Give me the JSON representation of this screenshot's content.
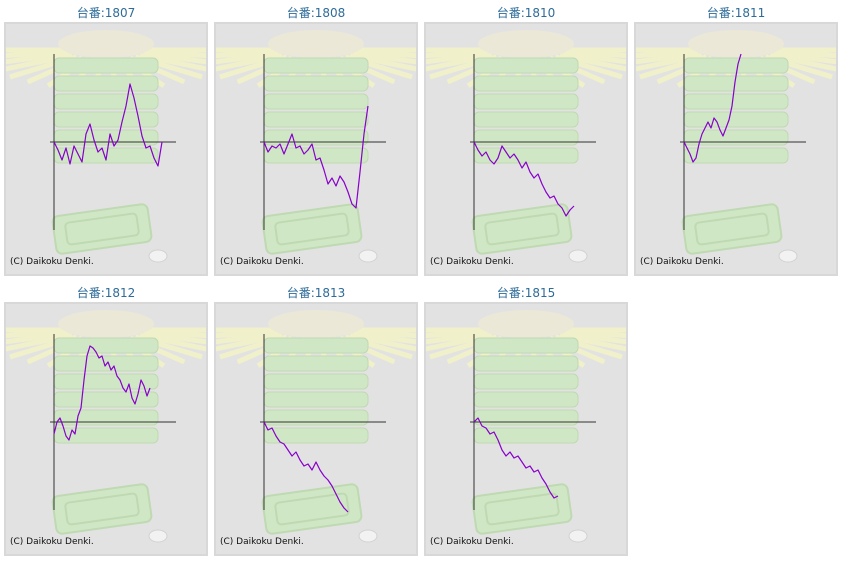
{
  "colors": {
    "title": "#2e6c9a",
    "line": "#8800cc",
    "axis": "#333333",
    "panel_bg": "#e2e2e2",
    "panel_border": "#d8d8d8",
    "watermark_green": "#cfe8c2",
    "watermark_rays": "#f2f2c8"
  },
  "chart_data": [
    {
      "type": "line",
      "title": "台番:1807",
      "copyright": "(C) Daikoku Denki.",
      "points": [
        [
          0,
          0
        ],
        [
          4,
          -8
        ],
        [
          8,
          -18
        ],
        [
          12,
          -6
        ],
        [
          16,
          -22
        ],
        [
          20,
          -4
        ],
        [
          24,
          -12
        ],
        [
          28,
          -20
        ],
        [
          32,
          8
        ],
        [
          36,
          18
        ],
        [
          40,
          2
        ],
        [
          44,
          -10
        ],
        [
          48,
          -6
        ],
        [
          52,
          -18
        ],
        [
          56,
          8
        ],
        [
          60,
          -4
        ],
        [
          64,
          2
        ],
        [
          68,
          20
        ],
        [
          72,
          36
        ],
        [
          76,
          58
        ],
        [
          80,
          44
        ],
        [
          84,
          26
        ],
        [
          88,
          6
        ],
        [
          92,
          -6
        ],
        [
          96,
          -4
        ],
        [
          100,
          -16
        ],
        [
          104,
          -24
        ],
        [
          108,
          0
        ]
      ]
    },
    {
      "type": "line",
      "title": "台番:1808",
      "copyright": "(C) Daikoku Denki.",
      "points": [
        [
          0,
          0
        ],
        [
          4,
          -10
        ],
        [
          8,
          -4
        ],
        [
          12,
          -6
        ],
        [
          16,
          -2
        ],
        [
          20,
          -12
        ],
        [
          24,
          -2
        ],
        [
          28,
          8
        ],
        [
          32,
          -6
        ],
        [
          36,
          -4
        ],
        [
          40,
          -12
        ],
        [
          44,
          -8
        ],
        [
          48,
          -2
        ],
        [
          52,
          -18
        ],
        [
          56,
          -16
        ],
        [
          60,
          -28
        ],
        [
          64,
          -42
        ],
        [
          68,
          -36
        ],
        [
          72,
          -44
        ],
        [
          76,
          -34
        ],
        [
          80,
          -40
        ],
        [
          84,
          -50
        ],
        [
          88,
          -62
        ],
        [
          92,
          -66
        ],
        [
          96,
          -30
        ],
        [
          100,
          8
        ],
        [
          104,
          36
        ]
      ]
    },
    {
      "type": "line",
      "title": "台番:1810",
      "copyright": "(C) Daikoku Denki.",
      "points": [
        [
          0,
          0
        ],
        [
          4,
          -8
        ],
        [
          8,
          -14
        ],
        [
          12,
          -10
        ],
        [
          16,
          -18
        ],
        [
          20,
          -22
        ],
        [
          24,
          -16
        ],
        [
          28,
          -4
        ],
        [
          32,
          -10
        ],
        [
          36,
          -16
        ],
        [
          40,
          -12
        ],
        [
          44,
          -18
        ],
        [
          48,
          -26
        ],
        [
          52,
          -20
        ],
        [
          56,
          -30
        ],
        [
          60,
          -36
        ],
        [
          64,
          -32
        ],
        [
          68,
          -42
        ],
        [
          72,
          -50
        ],
        [
          76,
          -56
        ],
        [
          80,
          -54
        ],
        [
          84,
          -62
        ],
        [
          88,
          -66
        ],
        [
          92,
          -74
        ],
        [
          96,
          -68
        ],
        [
          100,
          -64
        ]
      ]
    },
    {
      "type": "line",
      "title": "台番:1811",
      "copyright": "(C) Daikoku Denki.",
      "points": [
        [
          0,
          0
        ],
        [
          3,
          -6
        ],
        [
          6,
          -12
        ],
        [
          9,
          -20
        ],
        [
          12,
          -16
        ],
        [
          15,
          -2
        ],
        [
          18,
          8
        ],
        [
          21,
          14
        ],
        [
          24,
          20
        ],
        [
          27,
          14
        ],
        [
          30,
          24
        ],
        [
          33,
          20
        ],
        [
          36,
          12
        ],
        [
          39,
          6
        ],
        [
          42,
          14
        ],
        [
          45,
          22
        ],
        [
          48,
          36
        ],
        [
          51,
          60
        ],
        [
          54,
          78
        ],
        [
          57,
          88
        ]
      ]
    },
    {
      "type": "line",
      "title": "台番:1812",
      "copyright": "(C) Daikoku Denki.",
      "points": [
        [
          0,
          -12
        ],
        [
          3,
          0
        ],
        [
          6,
          4
        ],
        [
          9,
          -4
        ],
        [
          12,
          -14
        ],
        [
          15,
          -18
        ],
        [
          18,
          -8
        ],
        [
          21,
          -12
        ],
        [
          24,
          6
        ],
        [
          27,
          14
        ],
        [
          30,
          42
        ],
        [
          33,
          66
        ],
        [
          36,
          76
        ],
        [
          39,
          74
        ],
        [
          42,
          70
        ],
        [
          45,
          64
        ],
        [
          48,
          66
        ],
        [
          51,
          56
        ],
        [
          54,
          60
        ],
        [
          57,
          52
        ],
        [
          60,
          56
        ],
        [
          63,
          46
        ],
        [
          66,
          42
        ],
        [
          69,
          34
        ],
        [
          72,
          30
        ],
        [
          75,
          38
        ],
        [
          78,
          24
        ],
        [
          81,
          18
        ],
        [
          84,
          28
        ],
        [
          87,
          42
        ],
        [
          90,
          36
        ],
        [
          93,
          26
        ],
        [
          96,
          34
        ]
      ]
    },
    {
      "type": "line",
      "title": "台番:1813",
      "copyright": "(C) Daikoku Denki.",
      "points": [
        [
          0,
          0
        ],
        [
          4,
          -8
        ],
        [
          8,
          -6
        ],
        [
          12,
          -14
        ],
        [
          16,
          -20
        ],
        [
          20,
          -22
        ],
        [
          24,
          -28
        ],
        [
          28,
          -34
        ],
        [
          32,
          -30
        ],
        [
          36,
          -38
        ],
        [
          40,
          -44
        ],
        [
          44,
          -42
        ],
        [
          48,
          -48
        ],
        [
          52,
          -40
        ],
        [
          56,
          -48
        ],
        [
          60,
          -54
        ],
        [
          64,
          -58
        ],
        [
          68,
          -64
        ],
        [
          72,
          -72
        ],
        [
          76,
          -80
        ],
        [
          80,
          -86
        ],
        [
          84,
          -90
        ]
      ]
    },
    {
      "type": "line",
      "title": "台番:1815",
      "copyright": "(C) Daikoku Denki.",
      "points": [
        [
          0,
          0
        ],
        [
          4,
          4
        ],
        [
          8,
          -4
        ],
        [
          12,
          -6
        ],
        [
          16,
          -12
        ],
        [
          20,
          -10
        ],
        [
          24,
          -18
        ],
        [
          28,
          -28
        ],
        [
          32,
          -34
        ],
        [
          36,
          -30
        ],
        [
          40,
          -36
        ],
        [
          44,
          -34
        ],
        [
          48,
          -40
        ],
        [
          52,
          -46
        ],
        [
          56,
          -44
        ],
        [
          60,
          -50
        ],
        [
          64,
          -48
        ],
        [
          68,
          -56
        ],
        [
          72,
          -62
        ],
        [
          76,
          -70
        ],
        [
          80,
          -76
        ],
        [
          84,
          -74
        ]
      ]
    }
  ]
}
